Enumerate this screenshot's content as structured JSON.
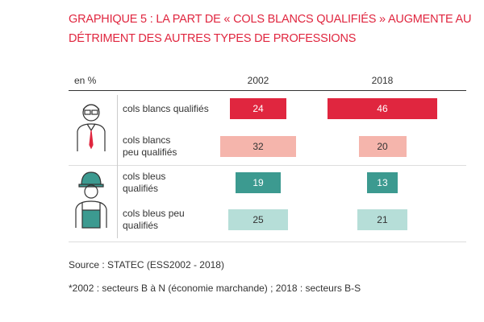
{
  "chart_data": {
    "type": "bar",
    "title": "GRAPHIQUE 5 : LA PART DE « COLS BLANCS QUALIFIÉS » AUGMENTE AU DÉTRIMENT DES AUTRES TYPES DE PROFESSIONS",
    "unit_label": "en %",
    "categories": [
      "cols blancs qualifiés",
      "cols blancs peu qualifiés",
      "cols bleus qualifiés",
      "cols bleus peu qualifiés"
    ],
    "colors": [
      "#e0263f",
      "#f5b5ac",
      "#3c9a90",
      "#b6ded8"
    ],
    "label_colors": [
      "#ffffff",
      "#333333",
      "#ffffff",
      "#333333"
    ],
    "series": [
      {
        "name": "2002",
        "values": [
          24,
          32,
          19,
          25
        ]
      },
      {
        "name": "2018",
        "values": [
          46,
          20,
          13,
          21
        ]
      }
    ],
    "source": "Source : STATEC (ESS2002 - 2018)",
    "note": "*2002 : secteurs B à N (économie marchande) ; 2018 : secteurs B-S"
  }
}
